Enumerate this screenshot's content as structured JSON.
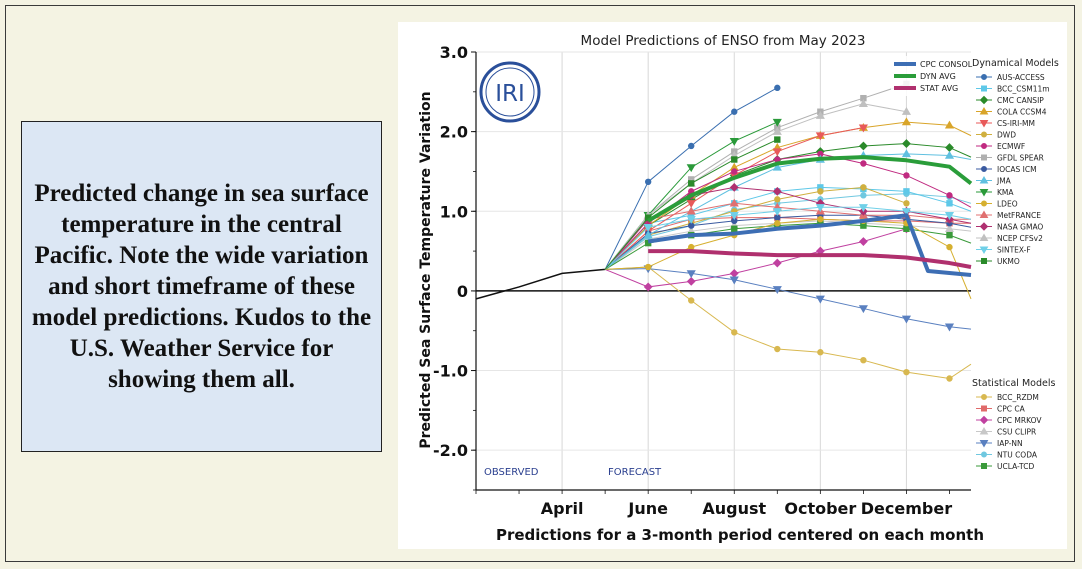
{
  "caption": "Predicted change in sea surface temperature in the central Pacific.  Note the wide variation and short timeframe of these model predictions.  Kudos to the U.S. Weather Service for showing them all.",
  "logo_text": "IRI",
  "chart_data": {
    "type": "line",
    "title": "Model Predictions of ENSO from May 2023",
    "ylabel": "Predicted Sea Surface Temperature  Variation",
    "xlabel": "Predictions for a 3-month period centered on each month",
    "ylim": [
      -2.5,
      3.0
    ],
    "yticks": [
      -2.0,
      -1.0,
      0,
      1.0,
      2.0,
      3.0
    ],
    "ytick_labels": [
      "-2.0",
      "-1.0",
      "0",
      "1.0",
      "2.0",
      "3.0"
    ],
    "x_axis_labels": [
      "April",
      "June",
      "August",
      "October",
      "December"
    ],
    "x_axis_label_positions": [
      3,
      5,
      7,
      9,
      11
    ],
    "observed_label": "OBSERVED",
    "forecast_label": "FORECAST",
    "observed": {
      "x": [
        1,
        2,
        3,
        4
      ],
      "y": [
        -0.1,
        0.05,
        0.22,
        0.27
      ]
    },
    "legend_dynamical_title": "Dynamical Models",
    "legend_statistical_title": "Statistical Models",
    "summary_series": [
      {
        "name": "CPC CONSOL",
        "color": "#3d6eb4",
        "x": [
          5,
          6,
          7,
          8,
          9,
          10,
          11,
          11.5,
          12.5
        ],
        "y": [
          0.62,
          0.7,
          0.72,
          0.78,
          0.82,
          0.88,
          0.95,
          0.25,
          0.2
        ]
      },
      {
        "name": "DYN AVG",
        "color": "#2a9d3a",
        "x": [
          5,
          6,
          7,
          8,
          9,
          10,
          11,
          12,
          12.5
        ],
        "y": [
          0.88,
          1.2,
          1.42,
          1.6,
          1.66,
          1.68,
          1.64,
          1.56,
          1.35
        ]
      },
      {
        "name": "STAT AVG",
        "color": "#b0306e",
        "x": [
          5,
          6,
          7,
          8,
          9,
          10,
          11,
          12,
          12.5
        ],
        "y": [
          0.5,
          0.5,
          0.47,
          0.45,
          0.45,
          0.45,
          0.42,
          0.35,
          0.3
        ]
      }
    ],
    "dynamical_series": [
      {
        "name": "AUS-ACCESS",
        "color": "#3a6fb0",
        "marker": "circle",
        "x": [
          5,
          6,
          7,
          8
        ],
        "y": [
          1.37,
          1.82,
          2.25,
          2.55
        ]
      },
      {
        "name": "BCC_CSM11m",
        "color": "#5ec8e8",
        "marker": "square",
        "x": [
          5,
          6,
          7,
          8,
          9,
          10,
          11,
          12,
          12.5
        ],
        "y": [
          0.85,
          0.95,
          1.1,
          1.25,
          1.3,
          1.28,
          1.25,
          1.1,
          1.0
        ]
      },
      {
        "name": "CMC CANSIP",
        "color": "#2a8a2a",
        "marker": "diamond",
        "x": [
          5,
          6,
          7,
          8,
          9,
          10,
          11,
          12,
          12.5
        ],
        "y": [
          0.82,
          1.15,
          1.45,
          1.65,
          1.75,
          1.82,
          1.85,
          1.8,
          1.68
        ]
      },
      {
        "name": "COLA CCSM4",
        "color": "#d9a52a",
        "marker": "triangle-up",
        "x": [
          5,
          6,
          7,
          8,
          9,
          10,
          11,
          12,
          12.5
        ],
        "y": [
          0.82,
          1.2,
          1.55,
          1.8,
          1.95,
          2.05,
          2.12,
          2.08,
          1.95
        ]
      },
      {
        "name": "CS-IRI-MM",
        "color": "#e85a5a",
        "marker": "triangle-down",
        "x": [
          5,
          6,
          7,
          8,
          9,
          10
        ],
        "y": [
          0.75,
          1.1,
          1.45,
          1.75,
          1.95,
          2.05
        ]
      },
      {
        "name": "DWD",
        "color": "#d0b040",
        "marker": "circle",
        "x": [
          5,
          6,
          7,
          8,
          9,
          10,
          11
        ],
        "y": [
          0.7,
          0.85,
          1.0,
          1.15,
          1.25,
          1.3,
          1.1
        ]
      },
      {
        "name": "ECMWF",
        "color": "#c02a80",
        "marker": "circle",
        "x": [
          5,
          6,
          7,
          8,
          9,
          10,
          11,
          12,
          12.5
        ],
        "y": [
          0.85,
          1.25,
          1.5,
          1.65,
          1.72,
          1.6,
          1.45,
          1.2,
          1.05
        ]
      },
      {
        "name": "GFDL SPEAR",
        "color": "#b0b0b0",
        "marker": "square",
        "x": [
          5,
          6,
          7,
          8,
          9,
          10,
          11
        ],
        "y": [
          0.95,
          1.4,
          1.75,
          2.05,
          2.25,
          2.42,
          2.6
        ]
      },
      {
        "name": "IOCAS ICM",
        "color": "#3a5aa0",
        "marker": "circle",
        "x": [
          5,
          6,
          7,
          8,
          9,
          10,
          11,
          12,
          12.5
        ],
        "y": [
          0.72,
          0.82,
          0.88,
          0.92,
          0.95,
          0.95,
          0.9,
          0.85,
          0.8
        ]
      },
      {
        "name": "JMA",
        "color": "#60c0e0",
        "marker": "triangle-up",
        "x": [
          5,
          6,
          7,
          8,
          9,
          10,
          11,
          12,
          12.5
        ],
        "y": [
          0.7,
          1.0,
          1.3,
          1.55,
          1.65,
          1.7,
          1.72,
          1.7,
          1.65
        ]
      },
      {
        "name": "KMA",
        "color": "#2a9a3a",
        "marker": "triangle-down",
        "x": [
          5,
          6,
          7,
          8
        ],
        "y": [
          0.95,
          1.55,
          1.88,
          2.12
        ]
      },
      {
        "name": "LDEO",
        "color": "#d6b030",
        "marker": "circle",
        "x": [
          5,
          6,
          7,
          8,
          9,
          10,
          11,
          12,
          12.5
        ],
        "y": [
          0.3,
          0.55,
          0.7,
          0.85,
          0.9,
          0.88,
          0.85,
          0.55,
          -0.1
        ]
      },
      {
        "name": "MetFRANCE",
        "color": "#e07070",
        "marker": "triangle-up",
        "x": [
          5,
          6,
          7,
          8,
          9,
          10,
          11,
          12,
          12.5
        ],
        "y": [
          0.9,
          1.0,
          1.1,
          1.05,
          1.0,
          0.95,
          0.95,
          0.9,
          0.9
        ]
      },
      {
        "name": "NASA GMAO",
        "color": "#b03070",
        "marker": "diamond",
        "x": [
          5,
          6,
          7,
          8,
          9,
          10,
          11,
          12,
          12.5
        ],
        "y": [
          0.9,
          1.2,
          1.3,
          1.25,
          1.1,
          1.0,
          1.0,
          0.9,
          0.85
        ]
      },
      {
        "name": "NCEP CFSv2",
        "color": "#c0c0c0",
        "marker": "triangle-up",
        "x": [
          5,
          6,
          7,
          8,
          9,
          10,
          11
        ],
        "y": [
          0.95,
          1.35,
          1.7,
          2.0,
          2.2,
          2.35,
          2.25
        ]
      },
      {
        "name": "SINTEX-F",
        "color": "#70d0e8",
        "marker": "triangle-down",
        "x": [
          5,
          6,
          7,
          8,
          9,
          10,
          11,
          12,
          12.5
        ],
        "y": [
          0.8,
          0.9,
          0.95,
          1.0,
          1.05,
          1.05,
          1.0,
          0.95,
          0.9
        ]
      },
      {
        "name": "UKMO",
        "color": "#2a8a2a",
        "marker": "square",
        "x": [
          5,
          6,
          7,
          8
        ],
        "y": [
          0.92,
          1.35,
          1.65,
          1.9
        ]
      }
    ],
    "statistical_series": [
      {
        "name": "BCC_RZDM",
        "color": "#d8b850",
        "marker": "circle",
        "x": [
          5,
          6,
          7,
          8,
          9,
          10,
          11,
          12,
          12.5
        ],
        "y": [
          0.3,
          -0.12,
          -0.52,
          -0.73,
          -0.77,
          -0.87,
          -1.02,
          -1.1,
          -0.92
        ]
      },
      {
        "name": "CPC CA",
        "color": "#e06a6a",
        "marker": "square",
        "x": [
          5,
          6,
          7,
          8,
          9,
          10,
          11,
          12,
          12.5
        ],
        "y": [
          0.75,
          0.9,
          0.92,
          0.92,
          0.9,
          0.88,
          0.88,
          0.85,
          0.85
        ]
      },
      {
        "name": "CPC MRKOV",
        "color": "#c040a0",
        "marker": "diamond",
        "x": [
          5,
          6,
          7,
          8,
          9,
          10,
          11
        ],
        "y": [
          0.05,
          0.12,
          0.22,
          0.35,
          0.5,
          0.62,
          0.78
        ]
      },
      {
        "name": "CSU CLIPR",
        "color": "#c8c8c8",
        "marker": "triangle-up",
        "x": [
          5,
          6,
          7,
          8,
          9,
          10,
          11,
          12,
          12.5
        ],
        "y": [
          0.65,
          0.75,
          0.82,
          0.85,
          0.88,
          0.85,
          0.82,
          0.78,
          0.75
        ]
      },
      {
        "name": "IAP-NN",
        "color": "#5a80c0",
        "marker": "triangle-down",
        "x": [
          5,
          6,
          7,
          8,
          9,
          10,
          11,
          12,
          12.5
        ],
        "y": [
          0.28,
          0.22,
          0.14,
          0.02,
          -0.1,
          -0.22,
          -0.35,
          -0.45,
          -0.48
        ]
      },
      {
        "name": "NTU CODA",
        "color": "#70c8e0",
        "marker": "circle",
        "x": [
          5,
          6,
          7,
          8,
          9,
          10,
          11,
          12,
          12.5
        ],
        "y": [
          0.68,
          0.82,
          1.02,
          1.1,
          1.15,
          1.2,
          1.22,
          1.18,
          1.1
        ]
      },
      {
        "name": "UCLA-TCD",
        "color": "#3a9a3a",
        "marker": "square",
        "x": [
          5,
          6,
          7,
          8,
          9,
          10,
          11,
          12,
          12.5
        ],
        "y": [
          0.6,
          0.7,
          0.78,
          0.82,
          0.85,
          0.82,
          0.78,
          0.7,
          0.6
        ]
      }
    ]
  }
}
